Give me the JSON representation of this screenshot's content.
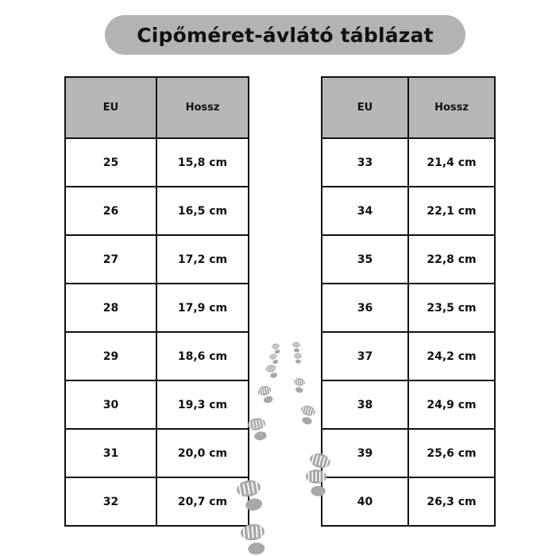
{
  "title": "Cipőméret-ávlátó táblázat",
  "tables": [
    {
      "headers": [
        "EU",
        "Hossz"
      ],
      "rows": [
        [
          "25",
          "15,8 cm"
        ],
        [
          "26",
          "16,5 cm"
        ],
        [
          "27",
          "17,2 cm"
        ],
        [
          "28",
          "17,9 cm"
        ],
        [
          "29",
          "18,6 cm"
        ],
        [
          "30",
          "19,3 cm"
        ],
        [
          "31",
          "20,0 cm"
        ],
        [
          "32",
          "20,7 cm"
        ]
      ]
    },
    {
      "headers": [
        "EU",
        "Hossz"
      ],
      "rows": [
        [
          "33",
          "21,4 cm"
        ],
        [
          "34",
          "22,1 cm"
        ],
        [
          "35",
          "22,8 cm"
        ],
        [
          "36",
          "23,5 cm"
        ],
        [
          "37",
          "24,2 cm"
        ],
        [
          "38",
          "24,9 cm"
        ],
        [
          "39",
          "25,6 cm"
        ],
        [
          "40",
          "26,3 cm"
        ]
      ]
    }
  ],
  "colors": {
    "header_bg": "#b7b7b7",
    "title_bg": "#b3b3b3",
    "footprint": "#a8a8a8"
  },
  "decoration": "footprints-icon"
}
